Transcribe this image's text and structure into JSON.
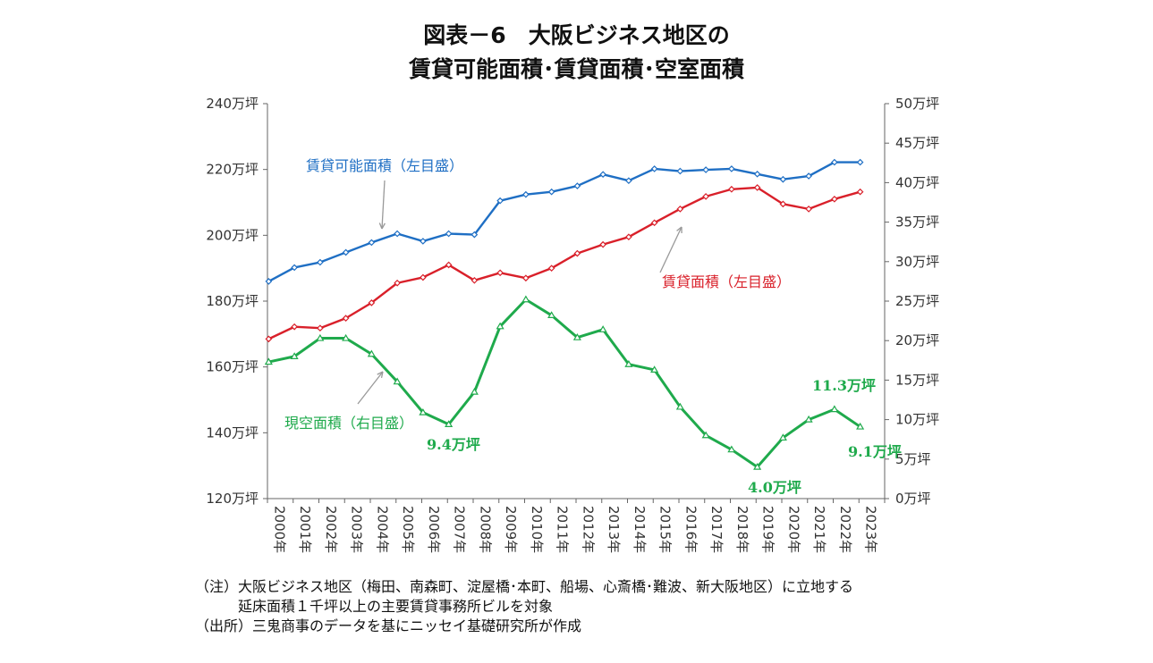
{
  "title_line1": "図表－6　大阪ビジネス地区の",
  "title_line2": "賃貸可能面積･賃貸面積･空室面積",
  "chart_data": {
    "type": "line",
    "categories": [
      "2000年",
      "2001年",
      "2002年",
      "2003年",
      "2004年",
      "2005年",
      "2006年",
      "2007年",
      "2008年",
      "2009年",
      "2010年",
      "2011年",
      "2012年",
      "2013年",
      "2014年",
      "2015年",
      "2016年",
      "2017年",
      "2018年",
      "2019年",
      "2020年",
      "2021年",
      "2022年",
      "2023年"
    ],
    "y_left": {
      "ylim": [
        120,
        240
      ],
      "ticks": [
        240,
        220,
        200,
        180,
        160,
        140,
        120
      ],
      "unit": "万坪"
    },
    "y_right": {
      "ylim": [
        0,
        50
      ],
      "ticks": [
        50,
        45,
        40,
        35,
        30,
        25,
        20,
        15,
        10,
        5,
        0
      ],
      "unit": "万坪"
    },
    "series": [
      {
        "name": "賃貸可能面積（左目盛）",
        "axis": "left",
        "color": "#1f6fc4",
        "values": [
          186,
          190.2,
          191.8,
          194.8,
          197.8,
          200.5,
          198.2,
          200.5,
          200.2,
          210.5,
          212.4,
          213.2,
          215,
          218.5,
          216.6,
          220.2,
          219.5,
          219.9,
          220.2,
          218.6,
          217,
          218,
          222.2,
          222.2
        ]
      },
      {
        "name": "賃貸面積（左目盛）",
        "axis": "left",
        "color": "#d9202a",
        "values": [
          168.5,
          172.2,
          171.8,
          174.8,
          179.5,
          185.5,
          187.2,
          191,
          186.3,
          188.6,
          187,
          190,
          194.5,
          197.2,
          199.5,
          203.8,
          208,
          211.8,
          214,
          214.5,
          209.5,
          208,
          211,
          213.2
        ]
      },
      {
        "name": "現空面積（右目盛）",
        "axis": "right",
        "color": "#1faa4c",
        "values": [
          17.3,
          18,
          20.3,
          20.3,
          18.3,
          14.8,
          10.9,
          9.4,
          13.5,
          21.8,
          25.2,
          23.2,
          20.4,
          21.4,
          17,
          16.3,
          11.6,
          8,
          6.2,
          4,
          7.7,
          10,
          11.3,
          9.1
        ]
      }
    ],
    "annotations": [
      {
        "text": "9.4万坪",
        "index": 7
      },
      {
        "text": "4.0万坪",
        "index": 19
      },
      {
        "text": "11.3万坪",
        "index": 22
      },
      {
        "text": "9.1万坪",
        "index": 23
      }
    ]
  },
  "notes": {
    "line1": "（注）大阪ビジネス地区（梅田、南森町、淀屋橋･本町、船場、心斎橋･難波、新大阪地区）に立地する",
    "line2": "延床面積１千坪以上の主要賃貸事務所ビルを対象",
    "line3": "（出所）三鬼商事のデータを基にニッセイ基礎研究所が作成"
  }
}
